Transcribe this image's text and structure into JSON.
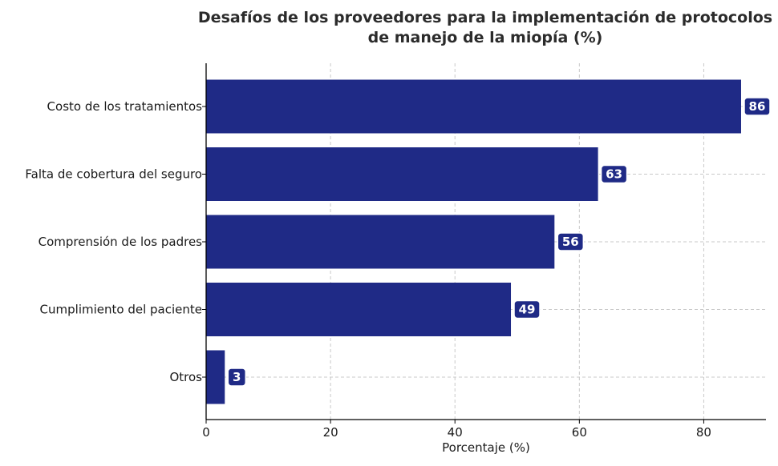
{
  "chart_data": {
    "type": "bar",
    "orientation": "horizontal",
    "title_lines": [
      "Desafíos de los proveedores para la implementación de protocolos",
      "de manejo de la miopía (%)"
    ],
    "categories": [
      "Costo de los tratamientos",
      "Falta de cobertura del seguro",
      "Comprensión de los padres",
      "Cumplimiento del paciente",
      "Otros"
    ],
    "values": [
      86,
      63,
      56,
      49,
      3
    ],
    "xlabel": "Porcentaje (%)",
    "ylabel": "",
    "xlim": [
      0,
      90
    ],
    "xticks": [
      0,
      20,
      40,
      60,
      80
    ],
    "grid": true,
    "bar_color": "#1f2a86",
    "label_box_color": "#1f2a86"
  }
}
